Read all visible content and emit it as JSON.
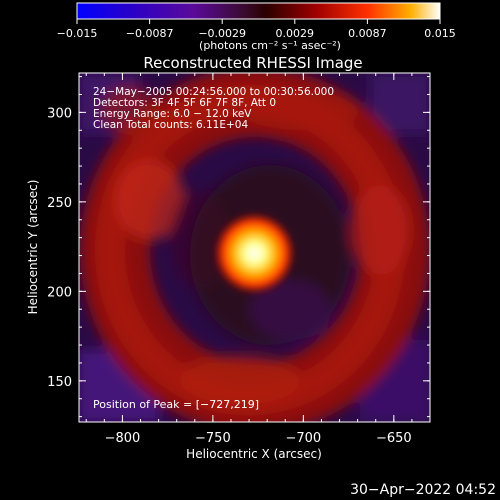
{
  "colorbar": {
    "tick_labels": [
      "−0.015",
      "−0.0087",
      "−0.0029",
      "0.0029",
      "0.0087",
      "0.015"
    ],
    "unit_label": "(photons cm⁻² s⁻¹ asec⁻²)",
    "range": [
      -0.015,
      0.015
    ]
  },
  "image": {
    "title": "Reconstructed RHESSI Image",
    "info_lines": [
      "24−May−2005 00:24:56.000 to 00:30:56.000",
      "Detectors: 3F 4F 5F 6F 7F 8F, Att 0",
      "Energy Range: 6.0 − 12.0 keV",
      "Clean     Total counts: 6.11E+04"
    ],
    "peak_label": "Position of Peak = [−727,219]",
    "peak": [
      -727,
      219
    ]
  },
  "axes": {
    "xlabel": "Heliocentric X (arcsec)",
    "ylabel": "Heliocentric Y (arcsec)",
    "x_ticks": [
      {
        "v": -800,
        "label": "−800"
      },
      {
        "v": -750,
        "label": "−750"
      },
      {
        "v": -700,
        "label": "−700"
      },
      {
        "v": -650,
        "label": "−650"
      }
    ],
    "y_ticks": [
      {
        "v": 150,
        "label": "150"
      },
      {
        "v": 200,
        "label": "200"
      },
      {
        "v": 250,
        "label": "250"
      },
      {
        "v": 300,
        "label": "300"
      }
    ],
    "xlim": [
      -824,
      -630
    ],
    "ylim": [
      127,
      322
    ]
  },
  "timestamp": "30−Apr−2022 04:52"
}
